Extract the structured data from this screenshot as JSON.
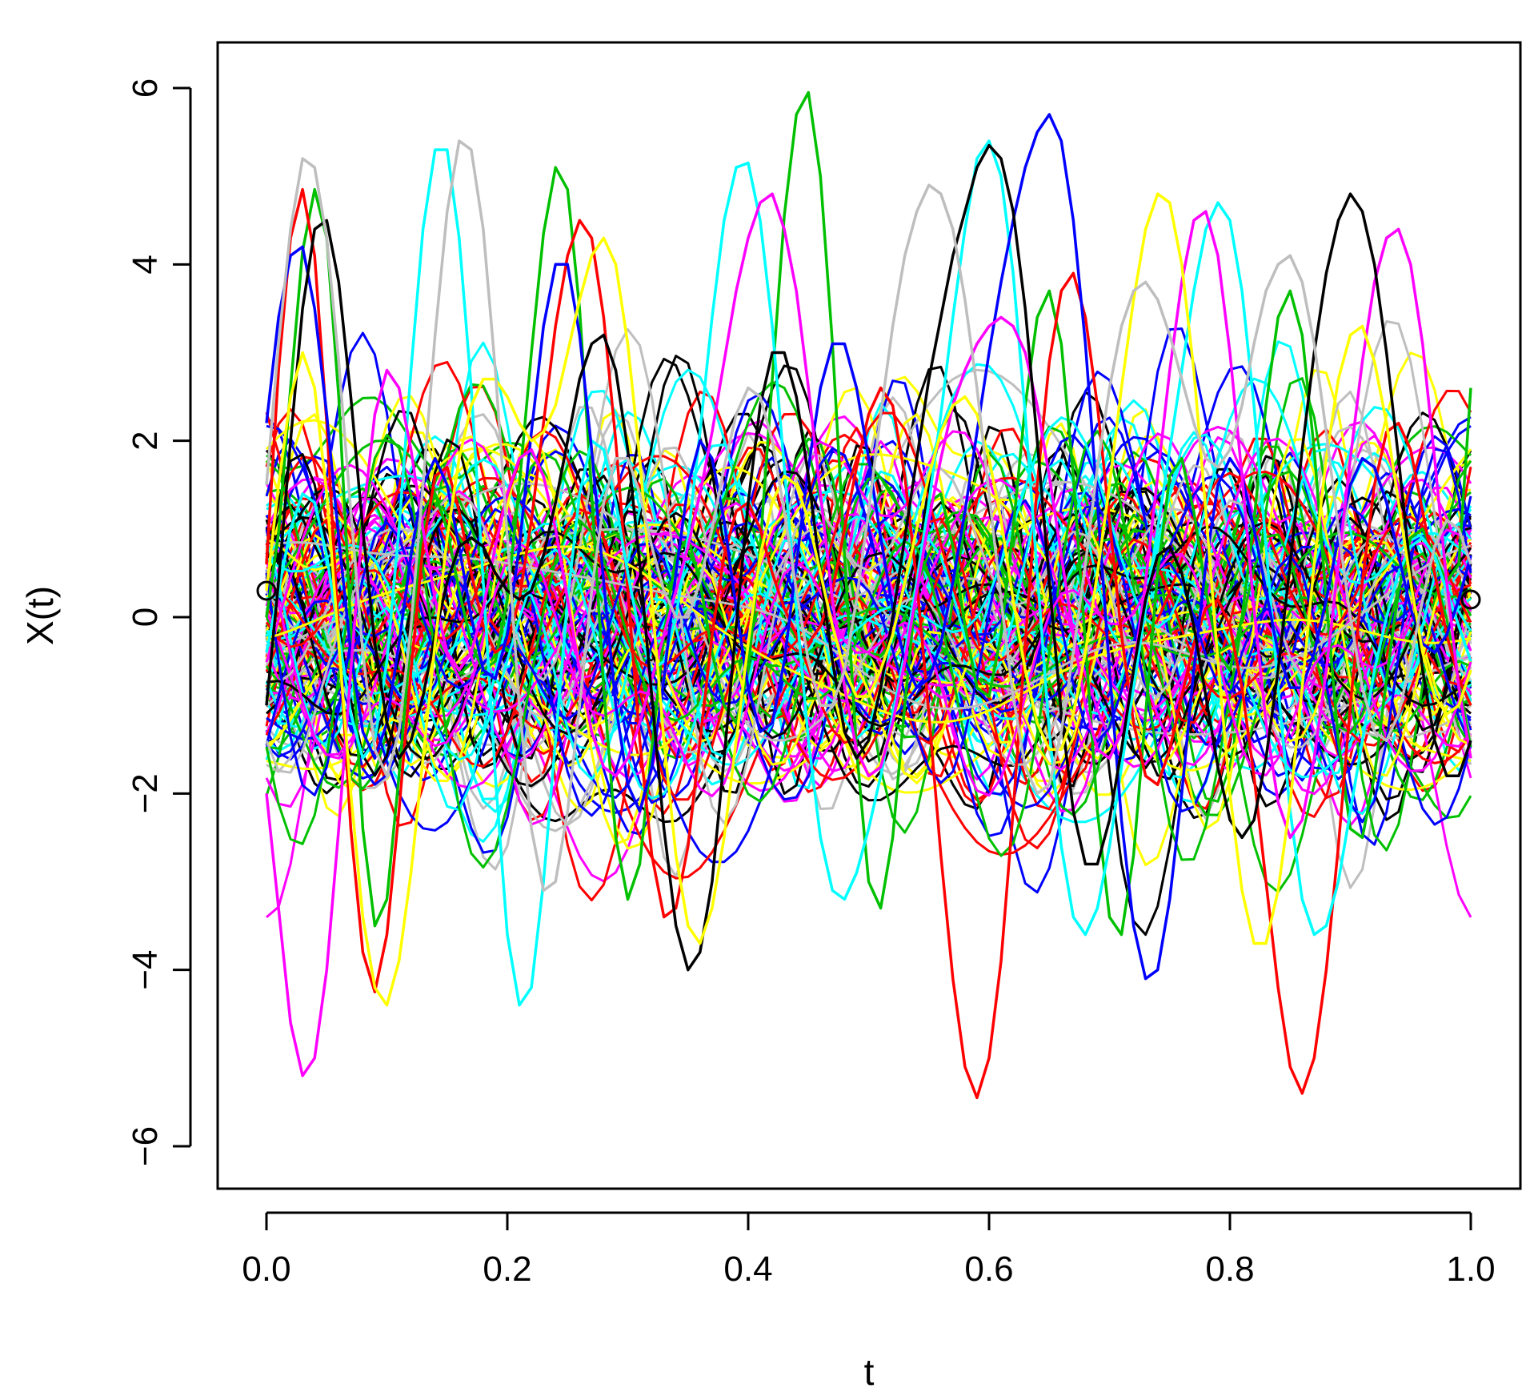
{
  "chart_data": {
    "type": "line",
    "title": "",
    "xlabel": "t",
    "ylabel": "X(t)",
    "xlim": [
      0.0,
      1.0
    ],
    "ylim": [
      -6.0,
      6.0
    ],
    "x_ticks": [
      "0.0",
      "0.2",
      "0.4",
      "0.6",
      "0.8",
      "1.0"
    ],
    "x_tick_values": [
      0.0,
      0.2,
      0.4,
      0.6,
      0.8,
      1.0
    ],
    "y_ticks": [
      "−6",
      "−4",
      "−2",
      "0",
      "2",
      "4",
      "6"
    ],
    "y_tick_values": [
      -6,
      -4,
      -2,
      0,
      2,
      4,
      6
    ],
    "grid": false,
    "legend": "none",
    "palette": [
      "#000000",
      "#ff0000",
      "#00c000",
      "#0000ff",
      "#00ffff",
      "#ff00ff",
      "#ffff00",
      "#bebebe"
    ],
    "points_per_curve": 101,
    "series": [
      {
        "color": "#00c000",
        "values": [
          0.0,
          0.95,
          2.6,
          4.15,
          4.85,
          4.3,
          2.5,
          -0.1,
          -2.4,
          -3.5,
          -3.2,
          -1.8,
          -0.2,
          1.0,
          1.4,
          1.0,
          0.3,
          -0.3,
          -0.6,
          -0.5,
          0.2,
          1.5,
          3.0,
          4.35,
          5.1,
          4.85,
          3.5,
          1.4,
          -0.8,
          -2.5,
          -3.2,
          -2.8,
          -1.5,
          -0.2,
          0.7,
          0.9,
          0.4,
          -0.4,
          -1.0,
          -1.2,
          -0.6,
          0.8,
          2.7,
          4.55,
          5.7,
          5.95,
          5.0,
          3.1,
          0.7,
          -1.5,
          -3.0,
          -3.3,
          -2.5,
          -1.0,
          0.4,
          1.3,
          1.4,
          0.8,
          -0.1,
          -0.8,
          -0.9,
          -0.2,
          1.0,
          2.4,
          3.4,
          3.7,
          3.1,
          1.6,
          -0.3,
          -2.2,
          -3.4,
          -3.6,
          -2.7,
          -1.1,
          0.5,
          1.6,
          1.8,
          1.2,
          0.3,
          -0.4,
          -0.6,
          0.0,
          1.1,
          2.4,
          3.4,
          3.7,
          3.2,
          1.9,
          0.2,
          -1.4,
          -2.4,
          -2.5,
          -1.8,
          -0.7,
          0.3,
          0.9,
          1.0,
          0.7,
          0.4,
          0.6,
          2.6
        ]
      },
      {
        "color": "#ff0000",
        "values": [
          0.6,
          2.8,
          4.3,
          4.85,
          4.1,
          2.2,
          -0.2,
          -2.4,
          -3.8,
          -4.25,
          -3.6,
          -2.2,
          -0.6,
          0.8,
          1.6,
          1.7,
          1.2,
          0.5,
          -0.1,
          -0.4,
          -0.3,
          0.2,
          1.1,
          2.2,
          3.3,
          4.1,
          4.5,
          4.3,
          3.4,
          2.0,
          0.3,
          -1.4,
          -2.7,
          -3.4,
          -3.3,
          -2.6,
          -1.4,
          -0.2,
          0.7,
          1.2,
          1.3,
          1.0,
          0.5,
          0.1,
          -0.2,
          -0.3,
          -0.1,
          0.3,
          1.0,
          1.7,
          2.3,
          2.6,
          2.4,
          1.6,
          0.4,
          -1.1,
          -2.7,
          -4.1,
          -5.1,
          -5.45,
          -5.0,
          -3.9,
          -2.2,
          -0.3,
          1.5,
          2.9,
          3.7,
          3.9,
          3.4,
          2.4,
          1.1,
          -0.2,
          -1.2,
          -1.8,
          -1.9,
          -1.5,
          -0.9,
          -0.3,
          0.1,
          0.2,
          -0.1,
          -0.8,
          -1.8,
          -3.0,
          -4.2,
          -5.1,
          -5.4,
          -5.0,
          -4.0,
          -2.6,
          -1.0,
          0.4,
          1.5,
          2.1,
          2.2,
          1.9,
          1.2,
          0.5,
          -0.2,
          -0.7,
          -1.0
        ]
      },
      {
        "color": "#00ffff",
        "values": [
          -0.4,
          0.3,
          1.0,
          1.4,
          1.3,
          0.7,
          -0.2,
          -1.1,
          -1.6,
          -1.4,
          -0.5,
          1.0,
          2.8,
          4.4,
          5.3,
          5.3,
          4.3,
          2.6,
          0.4,
          -1.8,
          -3.6,
          -4.4,
          -4.2,
          -3.0,
          -1.4,
          0.2,
          1.4,
          2.0,
          1.9,
          1.3,
          0.5,
          -0.2,
          -0.6,
          -0.5,
          0.0,
          0.9,
          2.1,
          3.4,
          4.5,
          5.1,
          5.15,
          4.5,
          3.3,
          1.7,
          0.1,
          -1.4,
          -2.5,
          -3.1,
          -3.2,
          -2.9,
          -2.4,
          -1.8,
          -1.1,
          -0.4,
          0.4,
          1.3,
          2.3,
          3.4,
          4.4,
          5.2,
          5.4,
          5.0,
          3.9,
          2.3,
          0.5,
          -1.3,
          -2.6,
          -3.4,
          -3.6,
          -3.3,
          -2.6,
          -1.7,
          -0.8,
          0.1,
          1.0,
          1.9,
          2.8,
          3.7,
          4.4,
          4.7,
          4.5,
          3.7,
          2.4,
          0.8,
          -0.8,
          -2.2,
          -3.2,
          -3.6,
          -3.5,
          -3.0,
          -2.2,
          -1.4,
          -0.6,
          0.0,
          0.5,
          0.8,
          0.9,
          0.7,
          0.3,
          -0.1,
          -0.5
        ]
      },
      {
        "color": "#0000ff",
        "values": [
          2.2,
          3.4,
          4.1,
          4.2,
          3.5,
          2.3,
          0.9,
          -0.4,
          -1.3,
          -1.6,
          -1.2,
          -0.3,
          0.7,
          1.5,
          1.8,
          1.5,
          0.8,
          0.0,
          -0.6,
          -0.7,
          -0.2,
          0.8,
          2.1,
          3.3,
          4.0,
          4.0,
          3.2,
          1.9,
          0.4,
          -1.0,
          -1.9,
          -2.2,
          -1.7,
          -0.7,
          0.5,
          1.5,
          2.0,
          1.8,
          1.1,
          0.1,
          -0.8,
          -1.3,
          -1.2,
          -0.5,
          0.6,
          1.7,
          2.6,
          3.1,
          3.1,
          2.6,
          1.8,
          0.9,
          0.1,
          -0.5,
          -0.8,
          -0.7,
          -0.3,
          0.4,
          1.2,
          2.1,
          3.0,
          3.8,
          4.5,
          5.1,
          5.5,
          5.7,
          5.4,
          4.5,
          3.1,
          1.3,
          -0.6,
          -2.3,
          -3.5,
          -4.1,
          -4.0,
          -3.2,
          -2.0,
          -0.6,
          0.6,
          1.5,
          1.8,
          1.6,
          1.0,
          0.3,
          -0.4,
          -0.8,
          -0.8,
          -0.4,
          0.2,
          0.9,
          1.5,
          1.8,
          1.7,
          1.3,
          0.7,
          0.1,
          -0.3,
          -0.4,
          -0.2,
          0.2,
          0.7
        ]
      },
      {
        "color": "#ff00ff",
        "values": [
          -2.0,
          -3.3,
          -4.6,
          -5.2,
          -5.0,
          -4.0,
          -2.4,
          -0.6,
          1.1,
          2.3,
          2.8,
          2.6,
          1.9,
          1.0,
          0.2,
          -0.4,
          -0.6,
          -0.4,
          0.1,
          0.8,
          1.4,
          1.8,
          1.9,
          1.6,
          1.0,
          0.2,
          -0.6,
          -1.3,
          -1.7,
          -1.8,
          -1.6,
          -1.2,
          -0.7,
          -0.2,
          0.3,
          0.8,
          1.4,
          2.1,
          2.9,
          3.7,
          4.3,
          4.7,
          4.8,
          4.4,
          3.7,
          2.6,
          1.4,
          0.2,
          -0.8,
          -1.5,
          -1.8,
          -1.7,
          -1.2,
          -0.5,
          0.3,
          1.1,
          1.8,
          2.4,
          2.8,
          3.1,
          3.3,
          3.4,
          3.3,
          3.0,
          2.4,
          1.6,
          0.7,
          -0.2,
          -1.0,
          -1.5,
          -1.6,
          -1.3,
          -0.6,
          0.4,
          1.6,
          2.8,
          3.8,
          4.5,
          4.6,
          4.1,
          3.0,
          1.6,
          0.1,
          -1.2,
          -2.1,
          -2.5,
          -2.3,
          -1.6,
          -0.6,
          0.6,
          1.8,
          2.9,
          3.8,
          4.3,
          4.4,
          4.0,
          3.1,
          1.8,
          0.4,
          -0.8,
          -1.6
        ]
      },
      {
        "color": "#000000",
        "values": [
          -1.0,
          0.4,
          2.0,
          3.5,
          4.4,
          4.5,
          3.8,
          2.5,
          1.0,
          -0.3,
          -1.2,
          -1.6,
          -1.4,
          -0.9,
          -0.2,
          0.4,
          0.8,
          0.9,
          0.8,
          0.5,
          0.3,
          0.2,
          0.3,
          0.7,
          1.3,
          2.0,
          2.7,
          3.1,
          3.2,
          2.8,
          1.9,
          0.6,
          -0.9,
          -2.4,
          -3.5,
          -4.0,
          -3.8,
          -3.0,
          -1.6,
          -0.1,
          1.3,
          2.4,
          3.0,
          3.0,
          2.5,
          1.6,
          0.5,
          -0.5,
          -1.3,
          -1.6,
          -1.4,
          -0.8,
          0.0,
          0.9,
          1.8,
          2.7,
          3.4,
          4.1,
          4.6,
          5.1,
          5.35,
          5.2,
          4.6,
          3.5,
          2.0,
          0.4,
          -1.1,
          -2.2,
          -2.8,
          -2.8,
          -2.3,
          -1.5,
          -0.6,
          0.2,
          0.7,
          0.8,
          0.5,
          -0.1,
          -0.9,
          -1.7,
          -2.3,
          -2.5,
          -2.3,
          -1.6,
          -0.6,
          0.6,
          1.9,
          3.0,
          3.9,
          4.5,
          4.8,
          4.6,
          4.0,
          3.0,
          1.8,
          0.5,
          -0.6,
          -1.4,
          -1.8,
          -1.8,
          -1.4
        ]
      },
      {
        "color": "#ffff00",
        "values": [
          0.3,
          1.5,
          2.5,
          3.0,
          2.6,
          1.4,
          -0.3,
          -2.0,
          -3.4,
          -4.2,
          -4.4,
          -3.9,
          -2.9,
          -1.6,
          -0.3,
          0.9,
          1.8,
          2.4,
          2.7,
          2.7,
          2.5,
          2.2,
          2.0,
          2.1,
          2.4,
          3.0,
          3.6,
          4.1,
          4.3,
          4.0,
          3.1,
          1.8,
          0.2,
          -1.4,
          -2.7,
          -3.5,
          -3.7,
          -3.3,
          -2.5,
          -1.4,
          -0.3,
          0.7,
          1.3,
          1.6,
          1.5,
          1.1,
          0.5,
          -0.1,
          -0.6,
          -0.9,
          -0.9,
          -0.6,
          -0.2,
          0.4,
          1.0,
          1.6,
          2.1,
          2.4,
          2.5,
          2.3,
          1.8,
          1.1,
          0.2,
          -0.6,
          -1.2,
          -1.5,
          -1.5,
          -1.1,
          -0.4,
          0.5,
          1.5,
          2.6,
          3.6,
          4.4,
          4.8,
          4.7,
          4.0,
          2.8,
          1.2,
          -0.5,
          -2.0,
          -3.1,
          -3.7,
          -3.7,
          -3.1,
          -2.1,
          -0.8,
          0.6,
          1.8,
          2.7,
          3.2,
          3.3,
          2.9,
          2.2,
          1.3,
          0.4,
          -0.4,
          -0.9,
          -1.1,
          -1.0,
          -0.6
        ]
      },
      {
        "color": "#bebebe",
        "values": [
          1.5,
          3.1,
          4.4,
          5.2,
          5.1,
          4.3,
          2.9,
          1.2,
          -0.4,
          -1.5,
          -1.8,
          -1.3,
          -0.1,
          1.5,
          3.2,
          4.6,
          5.4,
          5.3,
          4.4,
          2.8,
          0.9,
          -1.0,
          -2.4,
          -3.1,
          -3.0,
          -2.2,
          -1.0,
          0.3,
          1.3,
          1.8,
          1.8,
          1.4,
          0.8,
          0.3,
          0.0,
          0.0,
          0.4,
          1.0,
          1.7,
          2.3,
          2.6,
          2.5,
          2.0,
          1.2,
          0.3,
          -0.5,
          -1.0,
          -1.0,
          -0.6,
          0.2,
          1.2,
          2.3,
          3.3,
          4.1,
          4.6,
          4.9,
          4.8,
          4.4,
          3.6,
          2.6,
          1.4,
          0.2,
          -0.9,
          -1.7,
          -2.0,
          -1.9,
          -1.3,
          -0.4,
          0.6,
          1.7,
          2.6,
          3.3,
          3.7,
          3.8,
          3.6,
          3.2,
          2.7,
          2.2,
          1.8,
          1.7,
          1.9,
          2.4,
          3.1,
          3.7,
          4.0,
          4.1,
          3.8,
          3.1,
          2.1,
          1.0,
          0.0,
          -0.8,
          -1.3,
          -1.4,
          -1.1,
          -0.5,
          0.2,
          0.8,
          1.1,
          1.0,
          0.6
        ]
      }
    ],
    "annotations": [
      {
        "text": "o",
        "x": 0.0,
        "y": 0.3
      },
      {
        "text": "o",
        "x": 1.0,
        "y": 0.2
      }
    ]
  }
}
